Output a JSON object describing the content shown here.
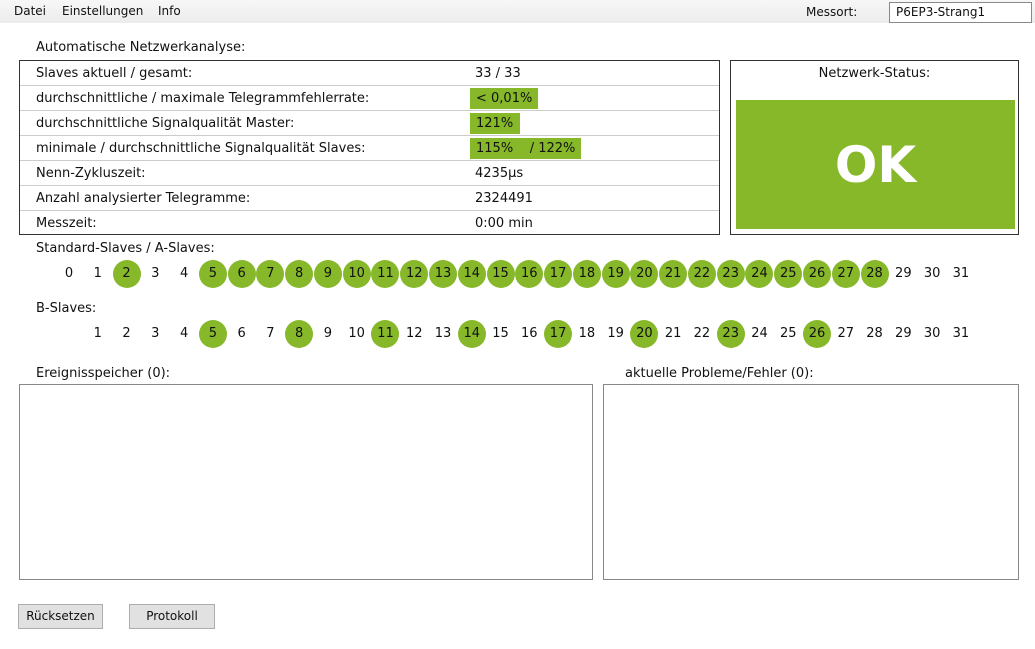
{
  "menu": [
    "Datei",
    "Einstellungen",
    "Info"
  ],
  "messort": {
    "label": "Messort:",
    "value": "P6EP3-Strang1"
  },
  "analysis": {
    "title": "Automatische Netzwerkanalyse:",
    "rows": [
      {
        "label": "Slaves aktuell / gesamt:",
        "value": "33 / 33",
        "bar": false
      },
      {
        "label": "durchschnittliche / maximale Telegrammfehlerrate:",
        "value": "< 0,01%",
        "bar": true
      },
      {
        "label": "durchschnittliche Signalqualität Master:",
        "value": "121%",
        "bar": true
      },
      {
        "label": "minimale / durchschnittliche Signalqualität Slaves:",
        "value": "115%    / 122%",
        "bar": true
      },
      {
        "label": "Nenn-Zykluszeit:",
        "value": "4235µs",
        "bar": false
      },
      {
        "label": "Anzahl analysierter Telegramme:",
        "value": "2324491",
        "bar": false
      },
      {
        "label": "Messzeit:",
        "value": "0:00 min",
        "bar": false
      }
    ]
  },
  "status": {
    "title": "Netzwerk-Status:",
    "value": "OK",
    "color": "#86b82a"
  },
  "a_slaves": {
    "label": "Standard-Slaves / A-Slaves:",
    "active": [
      2,
      5,
      6,
      7,
      8,
      9,
      10,
      11,
      12,
      13,
      14,
      15,
      16,
      17,
      18,
      19,
      20,
      21,
      22,
      23,
      24,
      25,
      26,
      27,
      28
    ]
  },
  "b_slaves": {
    "label": "B-Slaves:",
    "active": [
      5,
      8,
      11,
      14,
      17,
      20,
      23,
      26
    ]
  },
  "events": {
    "label": "Ereignisspeicher (0):"
  },
  "problems": {
    "label": "aktuelle Probleme/Fehler (0):"
  },
  "buttons": {
    "reset": "Rücksetzen",
    "protocol": "Protokoll"
  }
}
